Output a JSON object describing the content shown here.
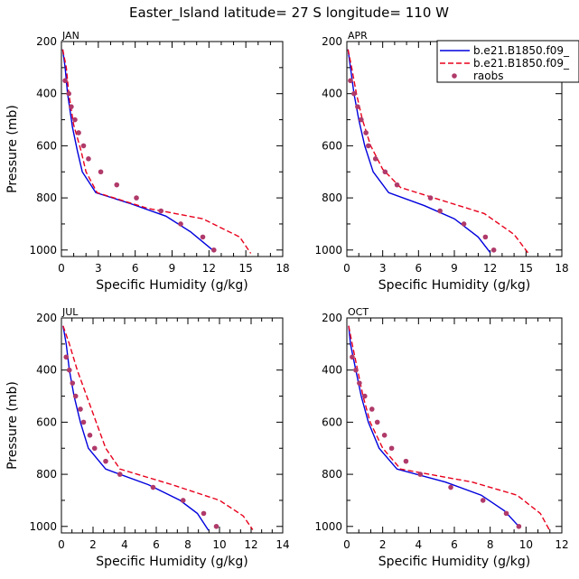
{
  "title": "Easter_Island   latitude= 27 S longitude= 110 W",
  "colors": {
    "model1": "#0000dd",
    "model2": "#e8001c",
    "obs": "#b03a6a"
  },
  "legend": {
    "entries": [
      {
        "label": "b.e21.B1850.f09_",
        "style": "solid-line"
      },
      {
        "label": "b.e21.B1850.f09_",
        "style": "dashed-line"
      },
      {
        "label": "raobs",
        "style": "dots"
      }
    ]
  },
  "chart_data": [
    {
      "type": "line",
      "panel": "JAN",
      "xlabel": "Specific Humidity (g/kg)",
      "ylabel": "Pressure (mb)",
      "xlim": [
        0,
        18
      ],
      "xticks": [
        0,
        3,
        6,
        9,
        12,
        15,
        18
      ],
      "ylim": [
        200,
        1025
      ],
      "yticks": [
        200,
        400,
        600,
        800,
        1000
      ],
      "y_inverted": true,
      "series": [
        {
          "legend_index": 0,
          "style": "solid",
          "points": [
            [
              0.1,
              230
            ],
            [
              0.3,
              300
            ],
            [
              0.5,
              400
            ],
            [
              0.9,
              530
            ],
            [
              1.3,
              620
            ],
            [
              1.7,
              700
            ],
            [
              2.8,
              780
            ],
            [
              5.5,
              820
            ],
            [
              8.5,
              870
            ],
            [
              10.5,
              930
            ],
            [
              12.3,
              1000
            ]
          ]
        },
        {
          "legend_index": 1,
          "style": "dashed",
          "points": [
            [
              0.1,
              230
            ],
            [
              0.4,
              300
            ],
            [
              0.6,
              400
            ],
            [
              1.0,
              520
            ],
            [
              1.6,
              620
            ],
            [
              2.0,
              700
            ],
            [
              2.9,
              780
            ],
            [
              7.0,
              840
            ],
            [
              11.5,
              880
            ],
            [
              14.5,
              950
            ],
            [
              15.4,
              1013
            ]
          ]
        },
        {
          "legend_index": 2,
          "style": "dots",
          "points": [
            [
              0.3,
              350
            ],
            [
              0.6,
              400
            ],
            [
              0.8,
              450
            ],
            [
              1.1,
              500
            ],
            [
              1.4,
              550
            ],
            [
              1.8,
              600
            ],
            [
              2.2,
              650
            ],
            [
              3.2,
              700
            ],
            [
              4.5,
              750
            ],
            [
              6.1,
              800
            ],
            [
              8.1,
              850
            ],
            [
              9.7,
              900
            ],
            [
              11.5,
              950
            ],
            [
              12.4,
              1000
            ]
          ]
        }
      ]
    },
    {
      "type": "line",
      "panel": "APR",
      "xlabel": "Specific Humidity (g/kg)",
      "ylabel": "",
      "xlim": [
        0,
        18
      ],
      "xticks": [
        0,
        3,
        6,
        9,
        12,
        15,
        18
      ],
      "ylim": [
        200,
        1025
      ],
      "yticks": [
        200,
        400,
        600,
        800,
        1000
      ],
      "y_inverted": true,
      "series": [
        {
          "legend_index": 0,
          "style": "solid",
          "points": [
            [
              0.1,
              230
            ],
            [
              0.3,
              300
            ],
            [
              0.6,
              400
            ],
            [
              1.0,
              500
            ],
            [
              1.5,
              600
            ],
            [
              2.2,
              700
            ],
            [
              3.5,
              780
            ],
            [
              6.5,
              830
            ],
            [
              9.0,
              880
            ],
            [
              11.0,
              950
            ],
            [
              12.0,
              1010
            ]
          ]
        },
        {
          "legend_index": 1,
          "style": "dashed",
          "points": [
            [
              0.1,
              230
            ],
            [
              0.4,
              300
            ],
            [
              0.8,
              400
            ],
            [
              1.3,
              500
            ],
            [
              2.0,
              600
            ],
            [
              3.0,
              690
            ],
            [
              4.5,
              760
            ],
            [
              8.0,
              810
            ],
            [
              11.5,
              860
            ],
            [
              14.0,
              940
            ],
            [
              15.2,
              1013
            ]
          ]
        },
        {
          "legend_index": 2,
          "style": "dots",
          "points": [
            [
              0.3,
              350
            ],
            [
              0.6,
              400
            ],
            [
              0.9,
              450
            ],
            [
              1.2,
              500
            ],
            [
              1.6,
              550
            ],
            [
              1.8,
              600
            ],
            [
              2.4,
              650
            ],
            [
              3.2,
              700
            ],
            [
              4.2,
              750
            ],
            [
              7.0,
              800
            ],
            [
              7.8,
              850
            ],
            [
              9.8,
              900
            ],
            [
              11.6,
              950
            ],
            [
              12.3,
              1000
            ]
          ]
        }
      ]
    },
    {
      "type": "line",
      "panel": "JUL",
      "xlabel": "Specific Humidity (g/kg)",
      "ylabel": "Pressure (mb)",
      "xlim": [
        0,
        14
      ],
      "xticks": [
        0,
        2,
        4,
        6,
        8,
        10,
        12,
        14
      ],
      "ylim": [
        200,
        1025
      ],
      "yticks": [
        200,
        400,
        600,
        800,
        1000
      ],
      "y_inverted": true,
      "series": [
        {
          "legend_index": 0,
          "style": "solid",
          "points": [
            [
              0.1,
              230
            ],
            [
              0.3,
              300
            ],
            [
              0.5,
              400
            ],
            [
              0.8,
              500
            ],
            [
              1.2,
              600
            ],
            [
              1.7,
              700
            ],
            [
              2.8,
              780
            ],
            [
              5.5,
              840
            ],
            [
              7.5,
              900
            ],
            [
              8.6,
              950
            ],
            [
              9.3,
              1015
            ]
          ]
        },
        {
          "legend_index": 1,
          "style": "dashed",
          "points": [
            [
              0.1,
              230
            ],
            [
              0.5,
              300
            ],
            [
              1.0,
              400
            ],
            [
              1.6,
              500
            ],
            [
              2.2,
              600
            ],
            [
              2.8,
              700
            ],
            [
              3.7,
              780
            ],
            [
              7.0,
              840
            ],
            [
              10.0,
              900
            ],
            [
              11.5,
              960
            ],
            [
              12.1,
              1013
            ]
          ]
        },
        {
          "legend_index": 2,
          "style": "dots",
          "points": [
            [
              0.3,
              350
            ],
            [
              0.5,
              400
            ],
            [
              0.7,
              450
            ],
            [
              0.9,
              500
            ],
            [
              1.2,
              550
            ],
            [
              1.4,
              600
            ],
            [
              1.8,
              650
            ],
            [
              2.1,
              700
            ],
            [
              2.8,
              750
            ],
            [
              3.7,
              800
            ],
            [
              5.8,
              850
            ],
            [
              7.7,
              900
            ],
            [
              9.0,
              950
            ],
            [
              9.8,
              1000
            ]
          ]
        }
      ]
    },
    {
      "type": "line",
      "panel": "OCT",
      "xlabel": "Specific Humidity (g/kg)",
      "ylabel": "",
      "xlim": [
        0,
        12
      ],
      "xticks": [
        0,
        2,
        4,
        6,
        8,
        10,
        12
      ],
      "ylim": [
        200,
        1025
      ],
      "yticks": [
        200,
        400,
        600,
        800,
        1000
      ],
      "y_inverted": true,
      "series": [
        {
          "legend_index": 0,
          "style": "solid",
          "points": [
            [
              0.1,
              230
            ],
            [
              0.2,
              300
            ],
            [
              0.5,
              400
            ],
            [
              0.8,
              500
            ],
            [
              1.2,
              600
            ],
            [
              1.8,
              700
            ],
            [
              2.8,
              780
            ],
            [
              5.5,
              830
            ],
            [
              7.5,
              880
            ],
            [
              8.8,
              940
            ],
            [
              9.6,
              1000
            ]
          ]
        },
        {
          "legend_index": 1,
          "style": "dashed",
          "points": [
            [
              0.1,
              230
            ],
            [
              0.3,
              300
            ],
            [
              0.6,
              400
            ],
            [
              0.9,
              500
            ],
            [
              1.3,
              600
            ],
            [
              2.0,
              700
            ],
            [
              3.0,
              780
            ],
            [
              7.0,
              830
            ],
            [
              9.5,
              880
            ],
            [
              10.8,
              950
            ],
            [
              11.3,
              1013
            ]
          ]
        },
        {
          "legend_index": 2,
          "style": "dots",
          "points": [
            [
              0.3,
              350
            ],
            [
              0.5,
              400
            ],
            [
              0.7,
              450
            ],
            [
              1.0,
              500
            ],
            [
              1.4,
              550
            ],
            [
              1.7,
              600
            ],
            [
              2.1,
              650
            ],
            [
              2.5,
              700
            ],
            [
              3.3,
              750
            ],
            [
              4.1,
              800
            ],
            [
              5.8,
              850
            ],
            [
              7.6,
              900
            ],
            [
              8.9,
              950
            ],
            [
              9.6,
              1000
            ]
          ]
        }
      ]
    }
  ]
}
